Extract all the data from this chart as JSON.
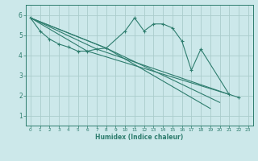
{
  "xlabel": "Humidex (Indice chaleur)",
  "bg_color": "#cce8ea",
  "line_color": "#2e7d6e",
  "grid_color": "#aacccc",
  "xlim": [
    -0.5,
    23.5
  ],
  "ylim": [
    0.5,
    6.5
  ],
  "yticks": [
    1,
    2,
    3,
    4,
    5,
    6
  ],
  "xticks": [
    0,
    1,
    2,
    3,
    4,
    5,
    6,
    7,
    8,
    9,
    10,
    11,
    12,
    13,
    14,
    15,
    16,
    17,
    18,
    19,
    20,
    21,
    22,
    23
  ],
  "main_line": {
    "x": [
      0,
      1,
      2,
      3,
      4,
      5,
      6,
      7,
      8,
      10,
      11,
      12,
      13,
      14,
      15,
      16,
      17,
      18,
      21,
      22
    ],
    "y": [
      5.85,
      5.2,
      4.8,
      4.55,
      4.4,
      4.2,
      4.2,
      4.3,
      4.35,
      5.2,
      5.85,
      5.2,
      5.55,
      5.55,
      5.35,
      4.7,
      3.25,
      4.3,
      2.05,
      1.9
    ]
  },
  "trend_lines": [
    {
      "x": [
        0,
        6,
        21
      ],
      "y": [
        5.85,
        4.2,
        2.05
      ]
    },
    {
      "x": [
        0,
        7,
        21
      ],
      "y": [
        5.85,
        4.3,
        2.05
      ]
    },
    {
      "x": [
        0,
        8,
        20
      ],
      "y": [
        5.85,
        4.35,
        1.65
      ]
    },
    {
      "x": [
        0,
        8,
        19
      ],
      "y": [
        5.85,
        4.35,
        1.35
      ]
    }
  ]
}
